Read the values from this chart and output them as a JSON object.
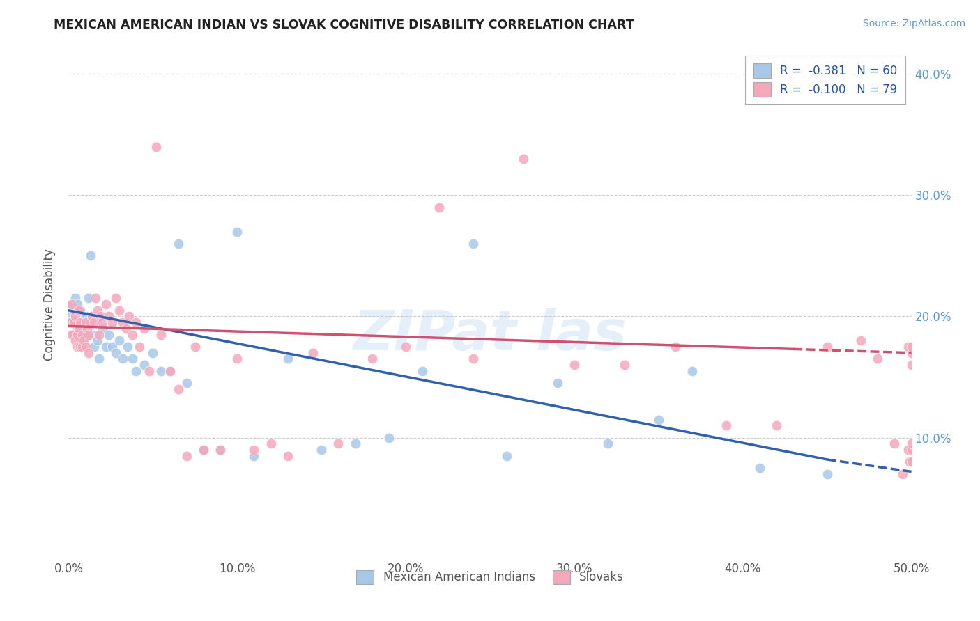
{
  "title": "MEXICAN AMERICAN INDIAN VS SLOVAK COGNITIVE DISABILITY CORRELATION CHART",
  "source": "Source: ZipAtlas.com",
  "ylabel": "Cognitive Disability",
  "xlim": [
    0.0,
    0.5
  ],
  "ylim": [
    0.0,
    0.42
  ],
  "xticks": [
    0.0,
    0.1,
    0.2,
    0.3,
    0.4,
    0.5
  ],
  "yticks": [
    0.1,
    0.2,
    0.3,
    0.4
  ],
  "ytick_labels": [
    "10.0%",
    "20.0%",
    "30.0%",
    "40.0%"
  ],
  "xtick_labels": [
    "0.0%",
    "10.0%",
    "20.0%",
    "30.0%",
    "40.0%",
    "50.0%"
  ],
  "R_blue": -0.381,
  "N_blue": 60,
  "R_pink": -0.1,
  "N_pink": 79,
  "legend_label_blue": "Mexican American Indians",
  "legend_label_pink": "Slovaks",
  "blue_color": "#A8C8E8",
  "pink_color": "#F4A8BC",
  "line_blue_color": "#3060B0",
  "line_pink_color": "#D05070",
  "blue_points_x": [
    0.001,
    0.002,
    0.002,
    0.003,
    0.003,
    0.004,
    0.004,
    0.005,
    0.005,
    0.006,
    0.006,
    0.007,
    0.007,
    0.008,
    0.008,
    0.009,
    0.01,
    0.01,
    0.011,
    0.012,
    0.012,
    0.013,
    0.014,
    0.015,
    0.016,
    0.017,
    0.018,
    0.02,
    0.022,
    0.024,
    0.026,
    0.028,
    0.03,
    0.032,
    0.035,
    0.038,
    0.04,
    0.045,
    0.05,
    0.055,
    0.06,
    0.065,
    0.07,
    0.08,
    0.09,
    0.1,
    0.11,
    0.13,
    0.15,
    0.17,
    0.19,
    0.21,
    0.24,
    0.26,
    0.29,
    0.32,
    0.35,
    0.37,
    0.41,
    0.45
  ],
  "blue_points_y": [
    0.2,
    0.195,
    0.21,
    0.205,
    0.185,
    0.195,
    0.215,
    0.19,
    0.21,
    0.2,
    0.185,
    0.195,
    0.205,
    0.18,
    0.19,
    0.195,
    0.185,
    0.2,
    0.195,
    0.215,
    0.185,
    0.25,
    0.2,
    0.175,
    0.185,
    0.18,
    0.165,
    0.19,
    0.175,
    0.185,
    0.175,
    0.17,
    0.18,
    0.165,
    0.175,
    0.165,
    0.155,
    0.16,
    0.17,
    0.155,
    0.155,
    0.26,
    0.145,
    0.09,
    0.09,
    0.27,
    0.085,
    0.165,
    0.09,
    0.095,
    0.1,
    0.155,
    0.26,
    0.085,
    0.145,
    0.095,
    0.115,
    0.155,
    0.075,
    0.07
  ],
  "pink_points_x": [
    0.001,
    0.002,
    0.002,
    0.003,
    0.004,
    0.004,
    0.005,
    0.005,
    0.006,
    0.006,
    0.007,
    0.007,
    0.008,
    0.008,
    0.009,
    0.01,
    0.01,
    0.011,
    0.012,
    0.012,
    0.013,
    0.014,
    0.015,
    0.016,
    0.017,
    0.018,
    0.019,
    0.02,
    0.022,
    0.024,
    0.026,
    0.028,
    0.03,
    0.032,
    0.034,
    0.036,
    0.038,
    0.04,
    0.042,
    0.045,
    0.048,
    0.052,
    0.055,
    0.06,
    0.065,
    0.07,
    0.075,
    0.08,
    0.09,
    0.1,
    0.11,
    0.12,
    0.13,
    0.145,
    0.16,
    0.18,
    0.2,
    0.22,
    0.24,
    0.27,
    0.3,
    0.33,
    0.36,
    0.39,
    0.42,
    0.45,
    0.47,
    0.48,
    0.49,
    0.495,
    0.498,
    0.498,
    0.499,
    0.5,
    0.5,
    0.5,
    0.5,
    0.5,
    0.5
  ],
  "pink_points_y": [
    0.195,
    0.185,
    0.21,
    0.195,
    0.18,
    0.2,
    0.185,
    0.175,
    0.19,
    0.205,
    0.175,
    0.195,
    0.175,
    0.185,
    0.18,
    0.175,
    0.195,
    0.19,
    0.185,
    0.17,
    0.195,
    0.2,
    0.195,
    0.215,
    0.205,
    0.185,
    0.2,
    0.195,
    0.21,
    0.2,
    0.195,
    0.215,
    0.205,
    0.195,
    0.19,
    0.2,
    0.185,
    0.195,
    0.175,
    0.19,
    0.155,
    0.34,
    0.185,
    0.155,
    0.14,
    0.085,
    0.175,
    0.09,
    0.09,
    0.165,
    0.09,
    0.095,
    0.085,
    0.17,
    0.095,
    0.165,
    0.175,
    0.29,
    0.165,
    0.33,
    0.16,
    0.16,
    0.175,
    0.11,
    0.11,
    0.175,
    0.18,
    0.165,
    0.095,
    0.07,
    0.09,
    0.175,
    0.08,
    0.16,
    0.17,
    0.175,
    0.08,
    0.09,
    0.095
  ],
  "blue_line_x_start": 0.0,
  "blue_line_x_solid_end": 0.45,
  "blue_line_x_end": 0.5,
  "blue_line_y_start": 0.205,
  "blue_line_y_solid_end": 0.082,
  "blue_line_y_end": 0.072,
  "pink_line_x_start": 0.0,
  "pink_line_x_solid_end": 0.5,
  "pink_line_x_dash_end": 0.5,
  "pink_line_y_start": 0.192,
  "pink_line_y_end": 0.17
}
